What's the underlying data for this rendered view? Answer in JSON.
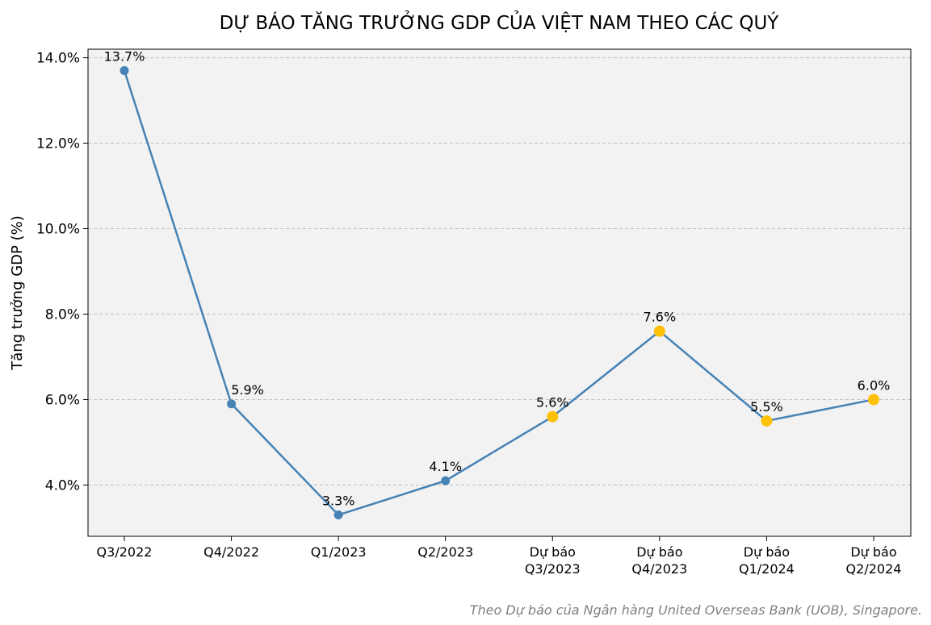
{
  "chart_data": {
    "type": "line",
    "title": "DỰ BÁO TĂNG TRƯỞNG GDP CỦA VIỆT NAM THEO CÁC QUÝ",
    "xlabel": "",
    "ylabel": "Tăng trưởng GDP (%)",
    "categories": [
      [
        "Q3/2022"
      ],
      [
        "Q4/2022"
      ],
      [
        "Q1/2023"
      ],
      [
        "Q2/2023"
      ],
      [
        "Dự báo",
        "Q3/2023"
      ],
      [
        "Dự báo",
        "Q4/2023"
      ],
      [
        "Dự báo",
        "Q1/2024"
      ],
      [
        "Dự báo",
        "Q2/2024"
      ]
    ],
    "values": [
      13.7,
      5.9,
      3.3,
      4.1,
      5.6,
      7.6,
      5.5,
      6.0
    ],
    "data_labels": [
      "13.7%",
      "5.9%",
      "3.3%",
      "4.1%",
      "5.6%",
      "7.6%",
      "5.5%",
      "6.0%"
    ],
    "forecast": [
      false,
      false,
      false,
      false,
      true,
      true,
      true,
      true
    ],
    "y_ticks": [
      4,
      6,
      8,
      10,
      12,
      14
    ],
    "y_tick_labels": [
      "4.0%",
      "6.0%",
      "8.0%",
      "10.0%",
      "12.0%",
      "14.0%"
    ],
    "ylim": [
      2.8,
      14.2
    ],
    "grid": "horizontal dashed",
    "colors": {
      "line": "#4682b4",
      "actual_marker": "#4682b4",
      "forecast_marker": "#ffc107",
      "plot_background": "#f2f2f2",
      "grid": "#c0c0c0",
      "footnote": "#808080"
    },
    "footnote": "Theo Dự báo của Ngân hàng United Overseas Bank (UOB), Singapore."
  }
}
